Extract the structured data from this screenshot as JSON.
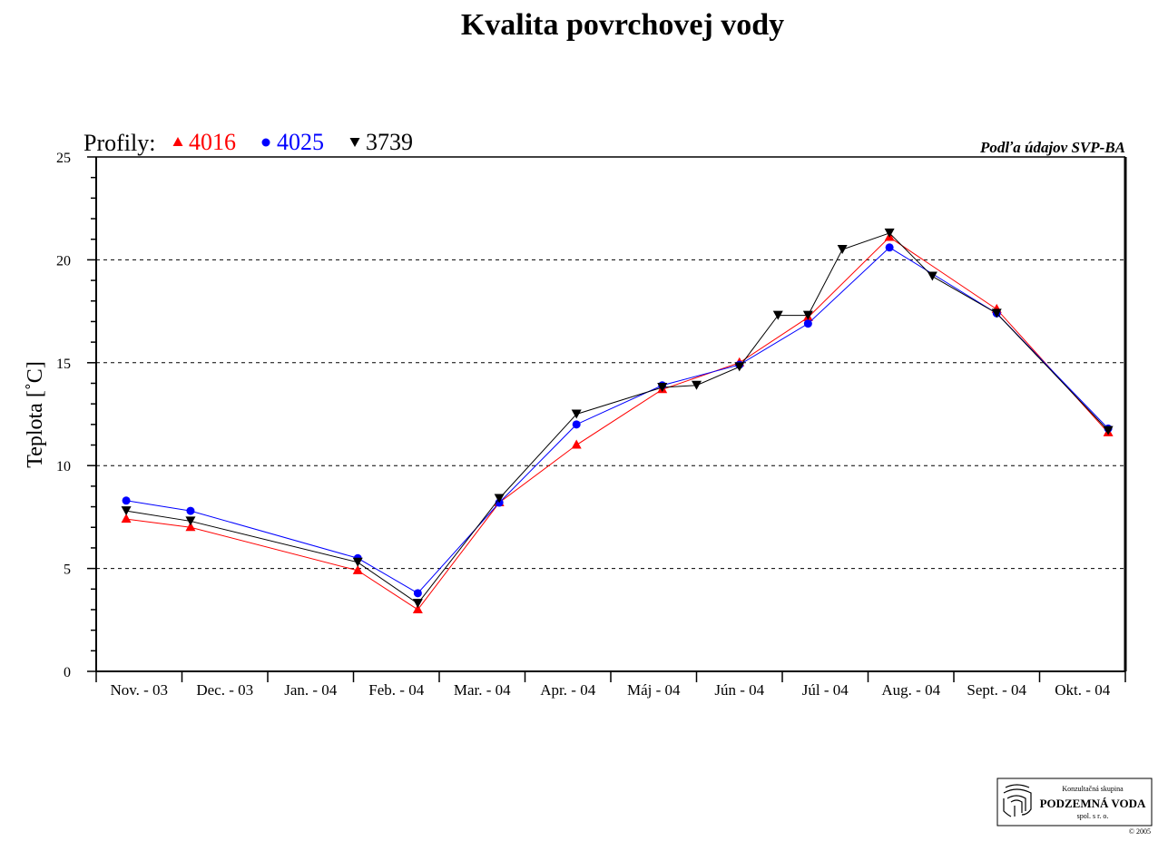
{
  "chart_data": {
    "type": "line",
    "title": "Kvalita povrchovej vody",
    "ylabel": "Teplota [˚C]",
    "xlabel": "",
    "ylim": [
      0,
      25
    ],
    "yticks": [
      0,
      5,
      10,
      15,
      20,
      25
    ],
    "y_minor_step": 1,
    "grid": "horizontal dashed at 5, 10, 15, 20",
    "categories": [
      "Nov. - 03",
      "Dec. - 03",
      "Jan. - 04",
      "Feb. - 04",
      "Mar. - 04",
      "Apr. - 04",
      "Máj - 04",
      "Jún - 04",
      "Júl - 04",
      "Aug. - 04",
      "Sept. - 04",
      "Okt. - 04"
    ],
    "legend_prefix": "Profily:",
    "legend_position": "top-left",
    "source_note": "Podľa údajov SVP-BA",
    "series": [
      {
        "name": "4016",
        "color": "#ff0000",
        "marker": "triangle-up",
        "points": [
          [
            0.35,
            7.4
          ],
          [
            1.1,
            7.0
          ],
          [
            3.05,
            4.9
          ],
          [
            3.75,
            3.0
          ],
          [
            4.7,
            8.2
          ],
          [
            5.6,
            11.0
          ],
          [
            6.6,
            13.7
          ],
          [
            7.5,
            15.0
          ],
          [
            8.3,
            17.2
          ],
          [
            9.25,
            21.1
          ],
          [
            10.5,
            17.6
          ],
          [
            11.8,
            11.6
          ]
        ]
      },
      {
        "name": "4025",
        "color": "#0000ff",
        "marker": "circle",
        "points": [
          [
            0.35,
            8.3
          ],
          [
            1.1,
            7.8
          ],
          [
            3.05,
            5.5
          ],
          [
            3.75,
            3.8
          ],
          [
            4.7,
            8.2
          ],
          [
            5.6,
            12.0
          ],
          [
            6.6,
            13.9
          ],
          [
            7.5,
            14.9
          ],
          [
            8.3,
            16.9
          ],
          [
            9.25,
            20.6
          ],
          [
            10.5,
            17.4
          ],
          [
            11.8,
            11.8
          ]
        ]
      },
      {
        "name": "3739",
        "color": "#000000",
        "marker": "triangle-down",
        "points": [
          [
            0.35,
            7.8
          ],
          [
            1.1,
            7.3
          ],
          [
            3.05,
            5.3
          ],
          [
            3.75,
            3.3
          ],
          [
            4.7,
            8.4
          ],
          [
            5.6,
            12.5
          ],
          [
            6.6,
            13.8
          ],
          [
            7.0,
            13.9
          ],
          [
            7.5,
            14.8
          ],
          [
            7.95,
            17.3
          ],
          [
            8.3,
            17.3
          ],
          [
            8.7,
            20.5
          ],
          [
            9.25,
            21.3
          ],
          [
            9.75,
            19.2
          ],
          [
            10.5,
            17.4
          ],
          [
            11.8,
            11.7
          ]
        ]
      }
    ]
  },
  "logo": {
    "line1": "Konzultačná skupina",
    "line2": "PODZEMNÁ VODA",
    "line3": "spol. s r. o.",
    "copyright": "© 2005",
    "icon": "fingerprint-icon"
  }
}
